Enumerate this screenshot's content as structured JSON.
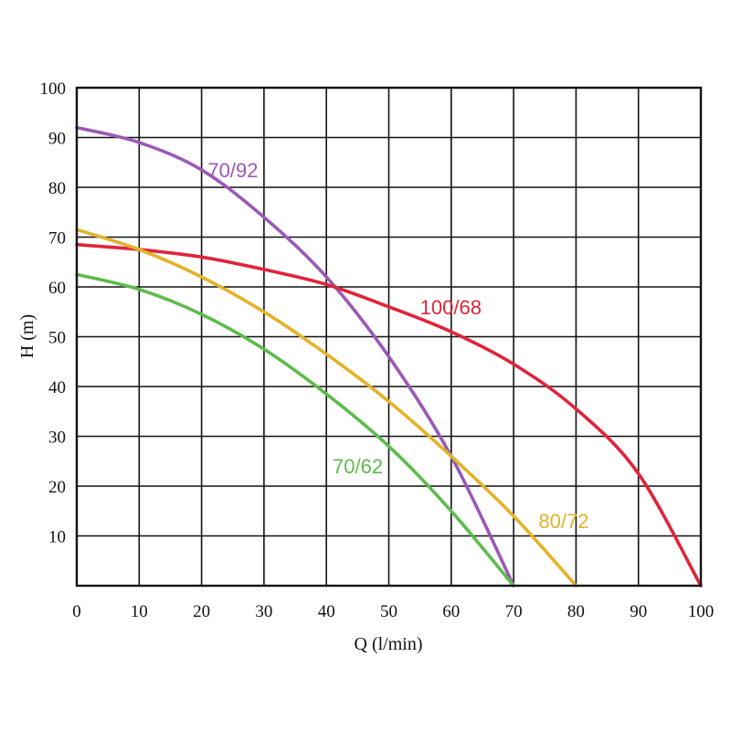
{
  "chart_data": {
    "type": "line",
    "title": "",
    "xlabel": "Q (l/min)",
    "ylabel": "H (m)",
    "xlim": [
      0,
      100
    ],
    "ylim": [
      0,
      100
    ],
    "xticks": [
      0,
      10,
      20,
      30,
      40,
      50,
      60,
      70,
      80,
      90,
      100
    ],
    "yticks": [
      10,
      20,
      30,
      40,
      50,
      60,
      70,
      80,
      90,
      100
    ],
    "grid": true,
    "series": [
      {
        "name": "70/92",
        "color": "#9b59b6",
        "x": [
          0,
          10,
          20,
          30,
          40,
          50,
          60,
          70
        ],
        "y": [
          92,
          89,
          83.5,
          74,
          62,
          46,
          26,
          0
        ]
      },
      {
        "name": "100/68",
        "color": "#e0243a",
        "x": [
          0,
          10,
          20,
          30,
          40,
          50,
          60,
          70,
          80,
          90,
          100
        ],
        "y": [
          68.5,
          67.5,
          66,
          63.5,
          60.5,
          56,
          51,
          44.5,
          35.5,
          22.5,
          0
        ]
      },
      {
        "name": "80/72",
        "color": "#e3b228",
        "x": [
          0,
          10,
          20,
          30,
          40,
          50,
          60,
          70,
          80
        ],
        "y": [
          71.5,
          67.5,
          62,
          55,
          46.5,
          37,
          26,
          14,
          0
        ]
      },
      {
        "name": "70/62",
        "color": "#5dbb4c",
        "x": [
          0,
          10,
          20,
          30,
          40,
          50,
          60,
          70
        ],
        "y": [
          62.5,
          59.5,
          54.5,
          47.5,
          38.5,
          28,
          15,
          0
        ]
      }
    ]
  }
}
